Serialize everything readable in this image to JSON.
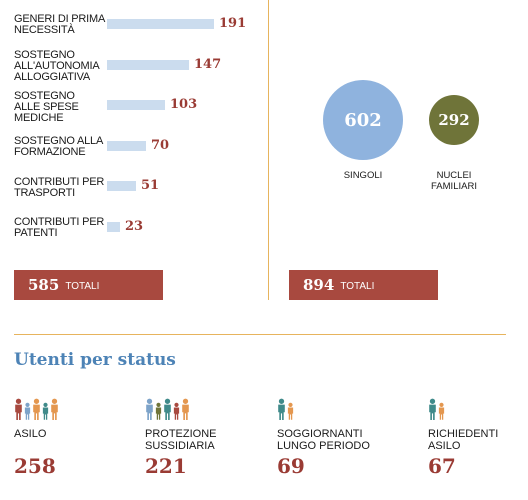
{
  "chart_data": [
    {
      "type": "bar",
      "categories": [
        "GENERI DI PRIMA\nNECESSITÀ",
        "SOSTEGNO\nALL'AUTONOMIA\nALLOGGIATIVA",
        "SOSTEGNO\nALLE SPESE\nMEDICHE",
        "SOSTEGNO ALLA\nFORMAZIONE",
        "CONTRIBUTI PER\nTRASPORTI",
        "CONTRIBUTI PER\nPATENTI"
      ],
      "values": [
        191,
        147,
        103,
        70,
        51,
        23
      ],
      "orientation": "horizontal",
      "total": {
        "value": "585",
        "label": "TOTALI"
      },
      "colors": {
        "bar": "#cbdcee",
        "value": "#9a3b34"
      }
    },
    {
      "type": "bubble",
      "categories": [
        "SINGOLI",
        "NUCLEI\nFAMILIARI"
      ],
      "values": [
        602,
        292
      ],
      "colors": [
        "#8fb3de",
        "#6f7439"
      ],
      "total": {
        "value": "894",
        "label": "TOTALI"
      }
    },
    {
      "type": "pictogram",
      "title": "Utenti per status",
      "categories": [
        "ASILO",
        "PROTEZIONE\nSUSSIDIARIA",
        "SOGGIORNANTI\nLUNGO PERIODO",
        "RICHIEDENTI\nASILO"
      ],
      "values": [
        258,
        221,
        69,
        67
      ],
      "icon_counts": [
        5,
        5,
        2,
        2
      ]
    }
  ],
  "colors": {
    "accent_red": "#a8493f",
    "value_red": "#9a3b34",
    "divider": "#e7b45d",
    "title_blue": "#4d83b6"
  },
  "icons": [
    "person-icon"
  ]
}
